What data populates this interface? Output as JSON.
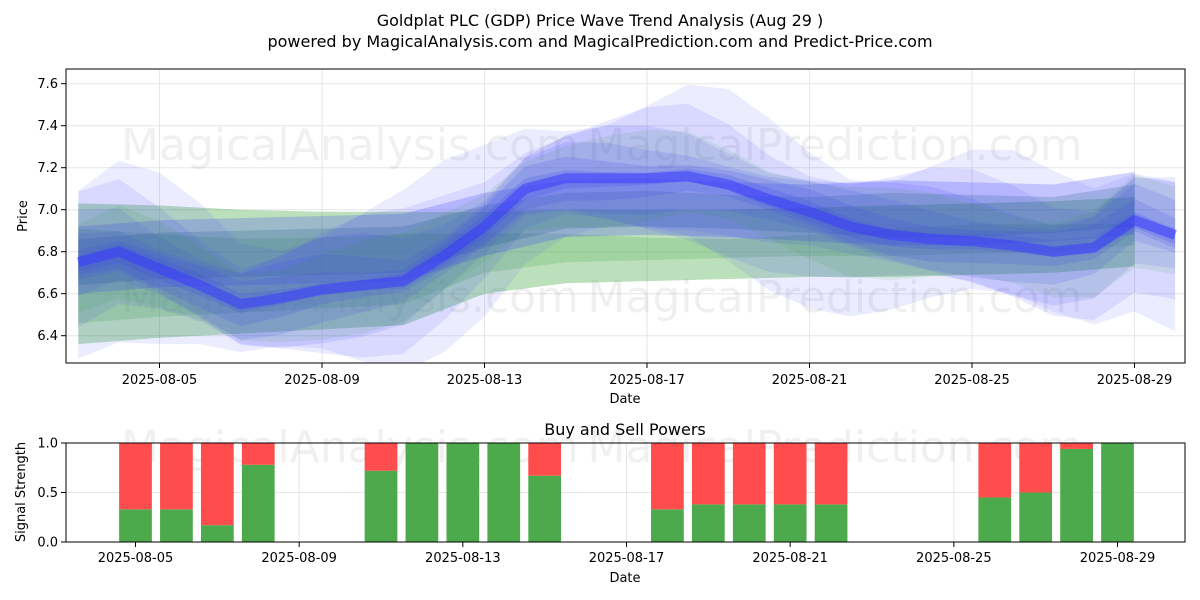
{
  "title": "Goldplat PLC (GDP) Price Wave Trend Analysis (Aug 29 )",
  "subtitle": "powered by MagicalAnalysis.com and MagicalPrediction.com and Predict-Price.com",
  "watermarks": [
    "MagicalAnalysis.com",
    "MagicalPrediction.com"
  ],
  "colors": {
    "green_band": "#2ca02c",
    "blue_band": "#3333ff",
    "teal_band": "#1a6080",
    "buy": "#4caa4c",
    "sell": "#ff4d4d"
  },
  "chart_data": [
    {
      "type": "area",
      "title": "",
      "xlabel": "Date",
      "ylabel": "Price",
      "x_ticks": [
        "2025-08-05",
        "2025-08-09",
        "2025-08-13",
        "2025-08-17",
        "2025-08-21",
        "2025-08-25",
        "2025-08-29"
      ],
      "y_ticks": [
        "6.4",
        "6.6",
        "6.8",
        "7.0",
        "7.2",
        "7.4",
        "7.6"
      ],
      "xlim": [
        "2025-08-02",
        "2025-08-30"
      ],
      "ylim": [
        6.27,
        7.67
      ],
      "grid": true,
      "series": [
        {
          "style": "green band (lower envelope)",
          "x": [
            "2025-08-03",
            "2025-08-05",
            "2025-08-07",
            "2025-08-09",
            "2025-08-11",
            "2025-08-13",
            "2025-08-15",
            "2025-08-17",
            "2025-08-19",
            "2025-08-21",
            "2025-08-23",
            "2025-08-25",
            "2025-08-27",
            "2025-08-29"
          ],
          "low": [
            6.36,
            6.39,
            6.41,
            6.43,
            6.45,
            6.6,
            6.65,
            6.66,
            6.67,
            6.68,
            6.68,
            6.69,
            6.7,
            6.73
          ],
          "high": [
            7.03,
            7.02,
            7.0,
            6.99,
            6.99,
            6.99,
            7.0,
            7.0,
            7.0,
            7.01,
            7.02,
            7.03,
            7.04,
            7.06
          ]
        },
        {
          "style": "blue band (upper envelope)",
          "x": [
            "2025-08-03",
            "2025-08-05",
            "2025-08-07",
            "2025-08-09",
            "2025-08-11",
            "2025-08-13",
            "2025-08-15",
            "2025-08-17",
            "2025-08-19",
            "2025-08-21",
            "2025-08-23",
            "2025-08-25",
            "2025-08-27",
            "2025-08-29"
          ],
          "low": [
            6.6,
            6.63,
            6.64,
            6.65,
            6.66,
            6.78,
            6.87,
            6.88,
            6.87,
            6.85,
            6.83,
            6.83,
            6.85,
            6.88
          ],
          "high": [
            6.92,
            6.95,
            6.96,
            6.97,
            6.98,
            7.08,
            7.14,
            7.15,
            7.13,
            7.12,
            7.14,
            7.13,
            7.12,
            7.18
          ]
        },
        {
          "style": "wave trend center",
          "x": [
            "2025-08-03",
            "2025-08-04",
            "2025-08-05",
            "2025-08-06",
            "2025-08-07",
            "2025-08-08",
            "2025-08-09",
            "2025-08-10",
            "2025-08-11",
            "2025-08-12",
            "2025-08-13",
            "2025-08-14",
            "2025-08-15",
            "2025-08-16",
            "2025-08-17",
            "2025-08-18",
            "2025-08-19",
            "2025-08-20",
            "2025-08-21",
            "2025-08-22",
            "2025-08-23",
            "2025-08-24",
            "2025-08-25",
            "2025-08-26",
            "2025-08-27",
            "2025-08-28",
            "2025-08-29",
            "2025-08-30"
          ],
          "y": [
            6.75,
            6.8,
            6.72,
            6.64,
            6.55,
            6.58,
            6.62,
            6.64,
            6.66,
            6.78,
            6.92,
            7.1,
            7.15,
            7.15,
            7.15,
            7.16,
            7.12,
            7.05,
            6.99,
            6.92,
            6.88,
            6.86,
            6.85,
            6.83,
            6.8,
            6.82,
            6.95,
            6.88
          ]
        }
      ]
    },
    {
      "type": "bar",
      "title": "Buy and Sell Powers",
      "xlabel": "Date",
      "ylabel": "Signal Strength",
      "x_ticks": [
        "2025-08-05",
        "2025-08-09",
        "2025-08-13",
        "2025-08-17",
        "2025-08-21",
        "2025-08-25",
        "2025-08-29"
      ],
      "y_ticks": [
        "0.0",
        "0.5",
        "1.0"
      ],
      "ylim": [
        0,
        1
      ],
      "grid": true,
      "categories": [
        "2025-08-05",
        "2025-08-06",
        "2025-08-07",
        "2025-08-08",
        "2025-08-11",
        "2025-08-12",
        "2025-08-13",
        "2025-08-14",
        "2025-08-15",
        "2025-08-18",
        "2025-08-19",
        "2025-08-20",
        "2025-08-21",
        "2025-08-22",
        "2025-08-26",
        "2025-08-27",
        "2025-08-28",
        "2025-08-29"
      ],
      "series": [
        {
          "values": [
            0.33,
            0.33,
            0.17,
            0.78,
            0.72,
            1.0,
            1.0,
            1.0,
            0.67,
            0.33,
            0.38,
            0.38,
            0.38,
            0.38,
            0.45,
            0.5,
            0.94,
            1.0
          ]
        },
        {
          "values": [
            0.67,
            0.67,
            0.83,
            0.22,
            0.28,
            0.0,
            0.0,
            0.0,
            0.33,
            0.67,
            0.62,
            0.62,
            0.62,
            0.62,
            0.55,
            0.5,
            0.06,
            0.0
          ]
        }
      ]
    }
  ]
}
